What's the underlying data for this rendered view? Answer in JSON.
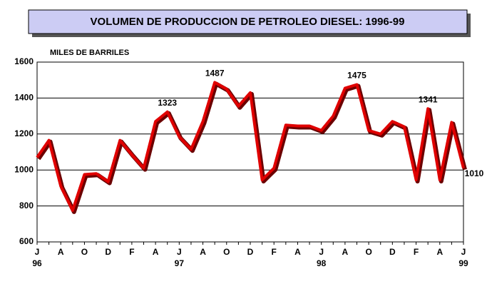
{
  "chart_data": {
    "type": "line",
    "title": "VOLUMEN DE PRODUCCION DE PETROLEO DIESEL: 1996-99",
    "y_label": "MILES DE BARRILES",
    "categories": [
      "J",
      null,
      "A",
      null,
      "O",
      null,
      "D",
      null,
      "F",
      null,
      "A",
      null,
      "J",
      null,
      "A",
      null,
      "O",
      null,
      "D",
      null,
      "F",
      null,
      "A",
      null,
      "J",
      null,
      "A",
      null,
      "O",
      null,
      "D",
      null,
      "F",
      null,
      "A",
      null,
      "J"
    ],
    "years": [
      "96",
      null,
      null,
      null,
      null,
      null,
      null,
      null,
      null,
      null,
      null,
      null,
      "97",
      null,
      null,
      null,
      null,
      null,
      null,
      null,
      null,
      null,
      null,
      null,
      "98",
      null,
      null,
      null,
      null,
      null,
      null,
      null,
      null,
      null,
      null,
      null,
      "99"
    ],
    "series": [
      {
        "color": "#e00000",
        "shadow_color": "#6b0000",
        "values": [
          1070,
          1165,
          910,
          775,
          975,
          980,
          935,
          1165,
          1085,
          1010,
          1270,
          1323,
          1185,
          1115,
          1270,
          1487,
          1450,
          1355,
          1430,
          945,
          1010,
          1250,
          1245,
          1245,
          1220,
          1300,
          1455,
          1475,
          1220,
          1200,
          1270,
          1240,
          945,
          1341,
          945,
          1265,
          1010
        ],
        "value_labels": [
          null,
          null,
          null,
          null,
          null,
          null,
          null,
          null,
          null,
          null,
          null,
          "1323",
          null,
          null,
          null,
          "1487",
          null,
          null,
          null,
          null,
          null,
          null,
          null,
          null,
          null,
          null,
          null,
          "1475",
          null,
          null,
          null,
          null,
          null,
          "1341",
          null,
          null,
          "1010"
        ]
      }
    ],
    "ylim": [
      600,
      1600
    ],
    "yticks": [
      600,
      800,
      1000,
      1200,
      1400,
      1600
    ],
    "grid": true
  }
}
